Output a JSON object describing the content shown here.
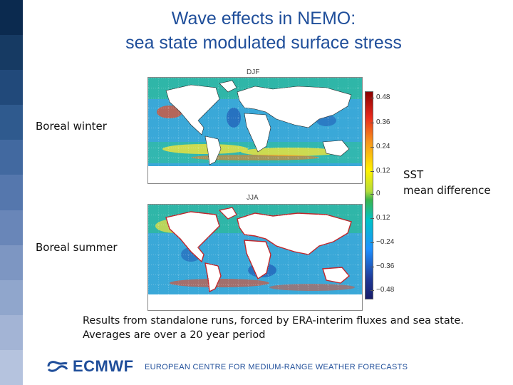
{
  "title": {
    "line1": "Wave effects in NEMO:",
    "line2": "sea state modulated surface stress"
  },
  "maps": {
    "top_title": "DJF",
    "bottom_title": "JJA"
  },
  "labels": {
    "boreal_winter": "Boreal winter",
    "boreal_summer": "Boreal summer",
    "sst_line1": "SST",
    "sst_line2": "mean difference"
  },
  "colorbar": {
    "ticks": [
      "0.48",
      "0.36",
      "0.24",
      "0.12",
      "0",
      "0.12",
      "−0.24",
      "−0.36",
      "−0.48"
    ],
    "colors": [
      "#8b0000",
      "#e8281c",
      "#f7941d",
      "#fff200",
      "#3cb44b",
      "#00c2c7",
      "#1e90ff",
      "#181c6a"
    ]
  },
  "caption": {
    "line1": "Results from standalone runs, forced by ERA-interim fluxes and sea state.",
    "line2": "Averages are over a 20 year period"
  },
  "footer": {
    "logo_text": "ECMWF",
    "tagline": "EUROPEAN CENTRE FOR MEDIUM-RANGE WEATHER FORECASTS"
  },
  "sidebar_colors": [
    "#0b2a4f",
    "#163a63",
    "#21497a",
    "#2f5a8e",
    "#4269a0",
    "#5577ad",
    "#6986b8",
    "#7d96c2",
    "#90a6cc",
    "#a3b4d5",
    "#b5c3de"
  ]
}
